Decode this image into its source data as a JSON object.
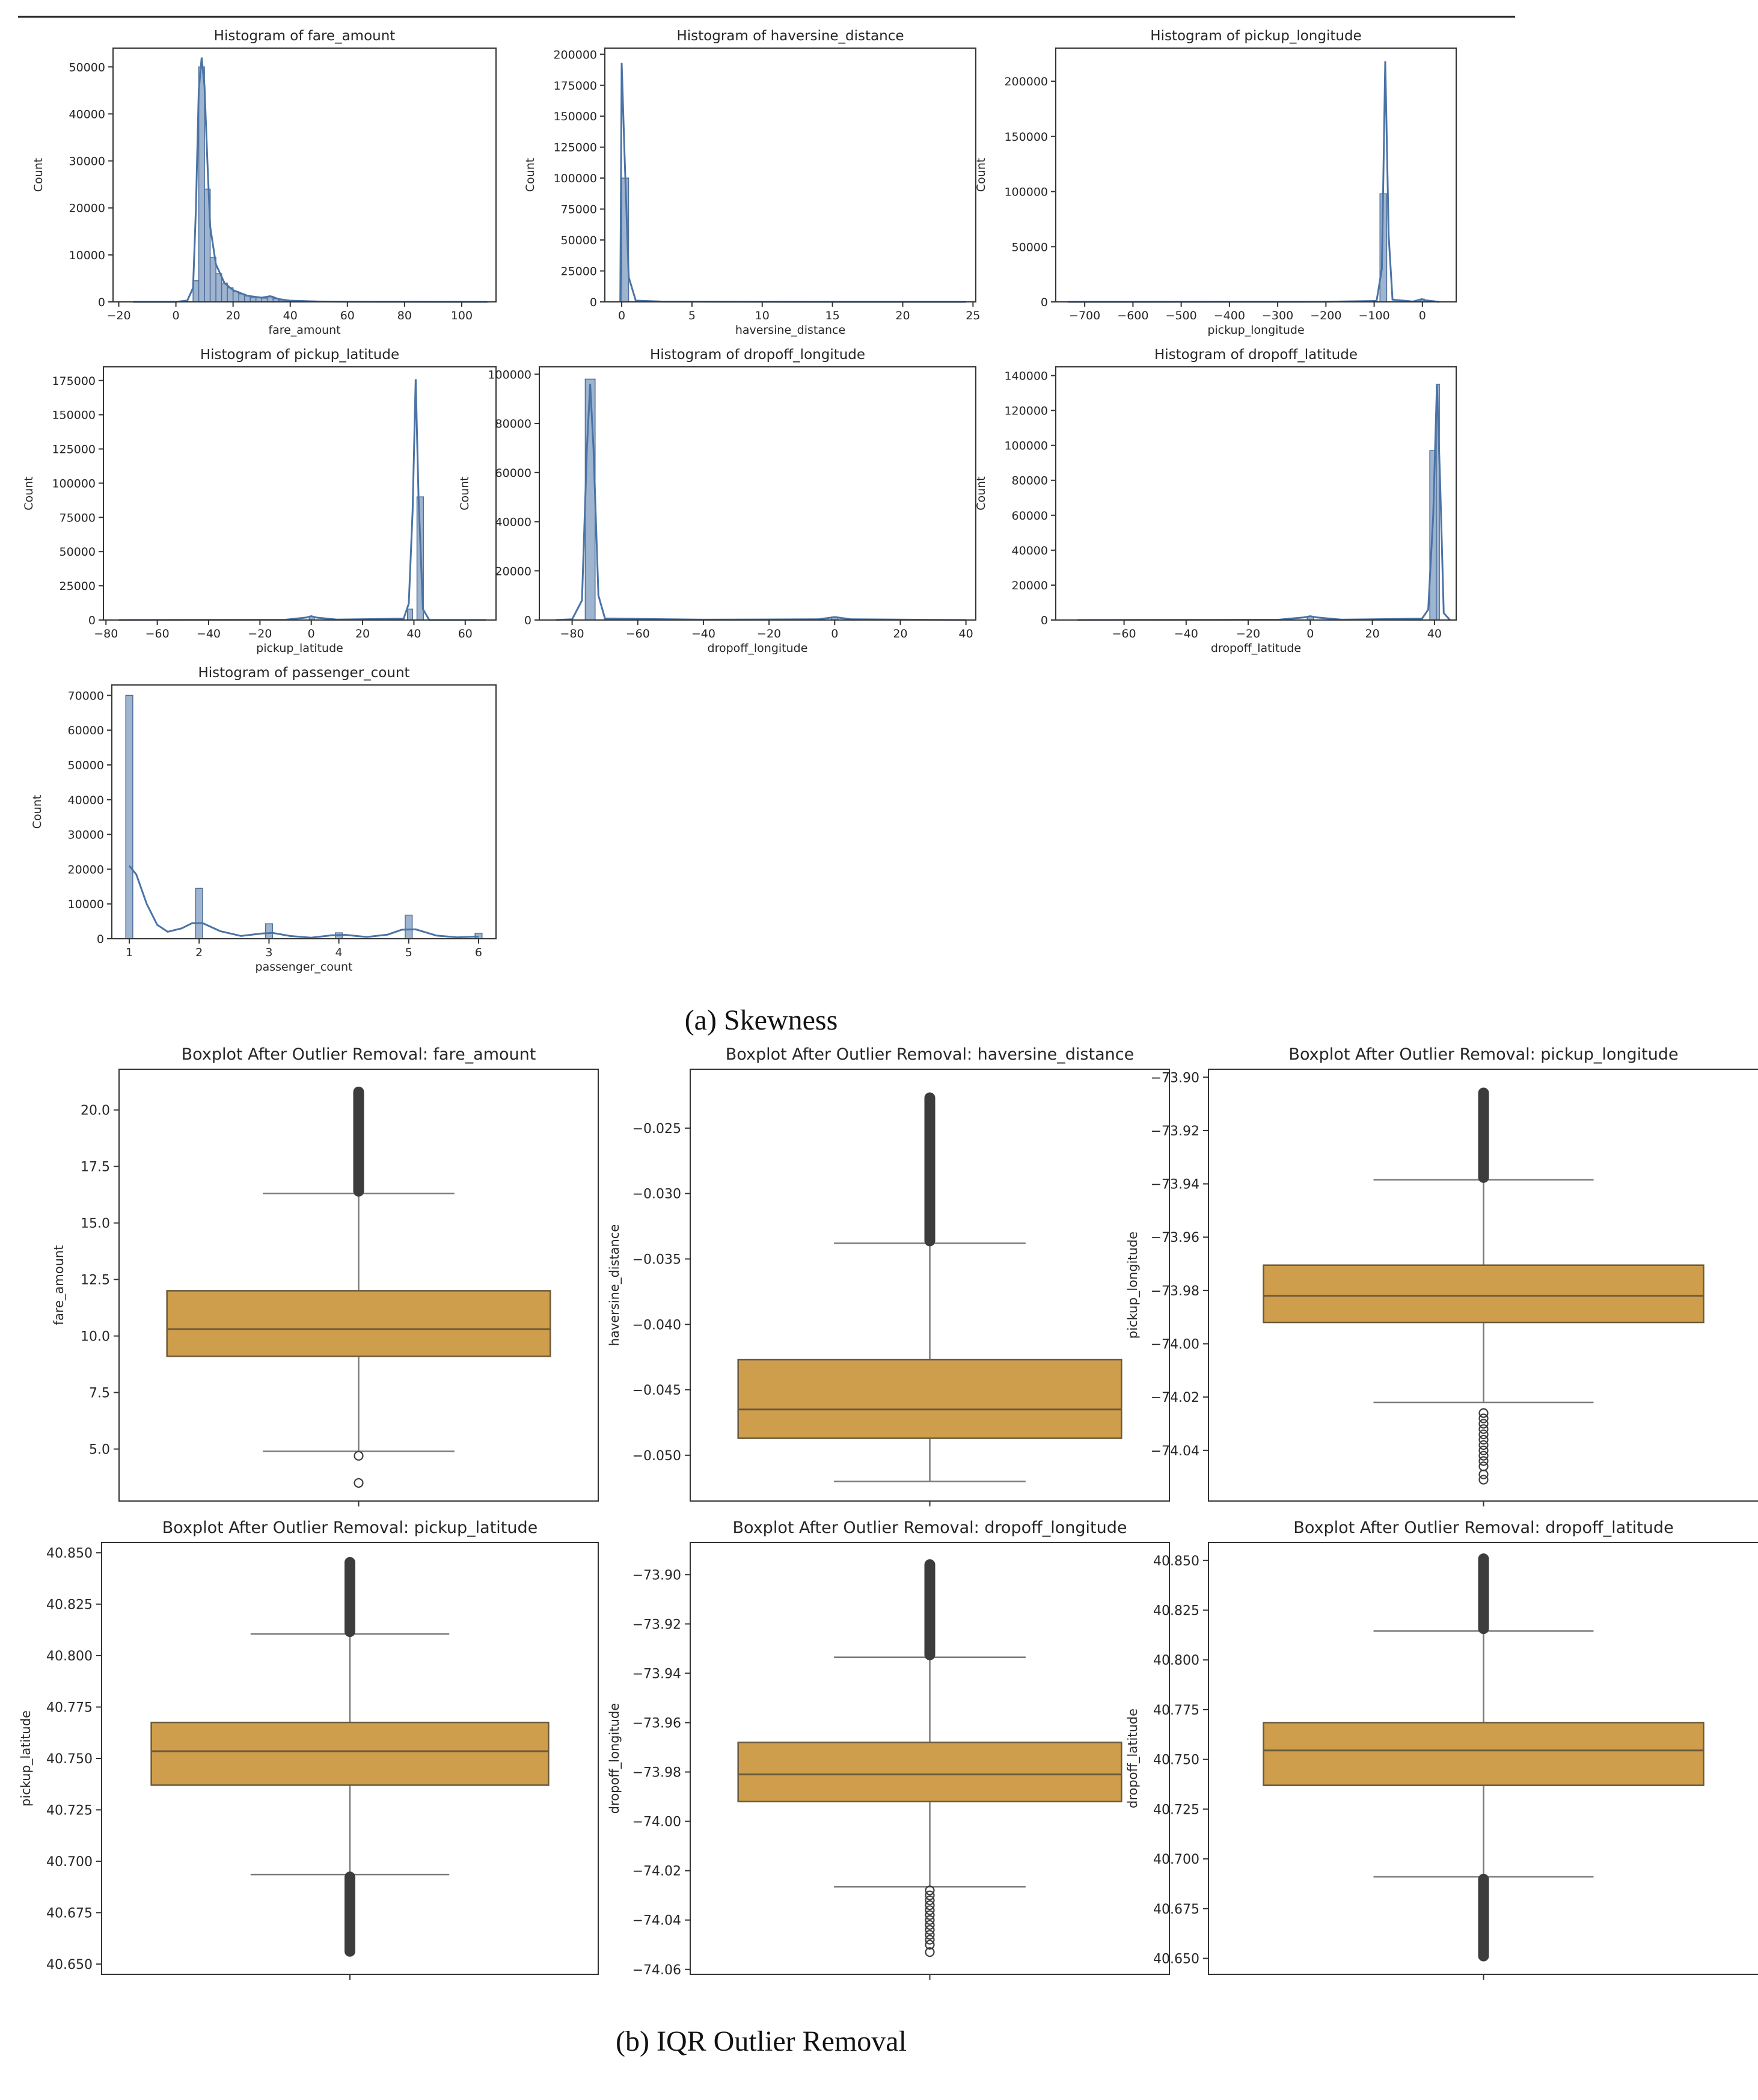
{
  "captions": {
    "a": "(a) Skewness",
    "b": "(b) IQR Outlier Removal"
  },
  "colors": {
    "hist_fill": "#9fb4cf",
    "hist_stroke": "#4e6e9a",
    "kde_line": "#4a74a6",
    "box_fill": "#cf9e4d",
    "box_stroke": "#6b5a3a",
    "outlier": "#3c3c3c"
  },
  "chart_data": [
    {
      "type": "bar",
      "title": "Histogram of fare_amount",
      "xlabel": "fare_amount",
      "ylabel": "Count",
      "xlim": [
        -22,
        112
      ],
      "ylim": [
        0,
        54000
      ],
      "xticks": [
        -20,
        0,
        20,
        40,
        60,
        80,
        100
      ],
      "xtick_labels": [
        "−20",
        "0",
        "20",
        "40",
        "60",
        "80",
        "100"
      ],
      "yticks": [
        0,
        10000,
        20000,
        30000,
        40000,
        50000
      ],
      "ytick_labels": [
        "0",
        "10000",
        "20000",
        "30000",
        "40000",
        "50000"
      ],
      "bars": [
        [
          6,
          8,
          4500
        ],
        [
          8,
          10,
          50000
        ],
        [
          10,
          12,
          24000
        ],
        [
          12,
          14,
          9500
        ],
        [
          14,
          16,
          6000
        ],
        [
          16,
          18,
          4000
        ],
        [
          18,
          20,
          3000
        ],
        [
          20,
          22,
          2200
        ],
        [
          22,
          24,
          1700
        ],
        [
          24,
          26,
          1300
        ],
        [
          26,
          28,
          1000
        ],
        [
          28,
          30,
          900
        ],
        [
          30,
          32,
          800
        ],
        [
          32,
          34,
          1200
        ],
        [
          34,
          36,
          700
        ],
        [
          36,
          38,
          400
        ],
        [
          38,
          40,
          300
        ],
        [
          40,
          42,
          200
        ],
        [
          42,
          46,
          120
        ]
      ],
      "kde": [
        [
          -15,
          0
        ],
        [
          0,
          0
        ],
        [
          4,
          300
        ],
        [
          6,
          3000
        ],
        [
          7,
          20000
        ],
        [
          8,
          45000
        ],
        [
          9,
          52000
        ],
        [
          10,
          46000
        ],
        [
          11,
          30000
        ],
        [
          12,
          16000
        ],
        [
          14,
          8000
        ],
        [
          17,
          4000
        ],
        [
          20,
          2500
        ],
        [
          25,
          1300
        ],
        [
          30,
          900
        ],
        [
          33,
          1200
        ],
        [
          36,
          600
        ],
        [
          40,
          250
        ],
        [
          50,
          80
        ],
        [
          60,
          30
        ],
        [
          80,
          10
        ],
        [
          109,
          0
        ]
      ]
    },
    {
      "type": "bar",
      "title": "Histogram of haversine_distance",
      "xlabel": "haversine_distance",
      "ylabel": "Count",
      "xlim": [
        -1.2,
        25.2
      ],
      "ylim": [
        0,
        205000
      ],
      "xticks": [
        0,
        5,
        10,
        15,
        20,
        25
      ],
      "xtick_labels": [
        "0",
        "5",
        "10",
        "15",
        "20",
        "25"
      ],
      "yticks": [
        0,
        25000,
        50000,
        75000,
        100000,
        125000,
        150000,
        175000,
        200000
      ],
      "ytick_labels": [
        "0",
        "25000",
        "50000",
        "75000",
        "100000",
        "125000",
        "150000",
        "175000",
        "200000"
      ],
      "bars": [
        [
          0,
          0.49,
          100000
        ],
        [
          0.49,
          0.98,
          300
        ]
      ],
      "kde": [
        [
          -0.1,
          0
        ],
        [
          0,
          193000
        ],
        [
          0.2,
          120000
        ],
        [
          0.5,
          20000
        ],
        [
          1,
          1000
        ],
        [
          3,
          200
        ],
        [
          10,
          60
        ],
        [
          24.5,
          0
        ]
      ]
    },
    {
      "type": "bar",
      "title": "Histogram of pickup_longitude",
      "xlabel": "pickup_longitude",
      "ylabel": "Count",
      "xlim": [
        -760,
        70
      ],
      "ylim": [
        0,
        230000
      ],
      "xticks": [
        -700,
        -600,
        -500,
        -400,
        -300,
        -200,
        -100,
        0
      ],
      "xtick_labels": [
        "−700",
        "−600",
        "−500",
        "−400",
        "−300",
        "−200",
        "−100",
        "0"
      ],
      "yticks": [
        0,
        50000,
        100000,
        150000,
        200000
      ],
      "ytick_labels": [
        "0",
        "50000",
        "100000",
        "150000",
        "200000"
      ],
      "bars": [
        [
          -88,
          -74,
          98000
        ],
        [
          -4,
          4,
          2500
        ]
      ],
      "kde": [
        [
          -735,
          0
        ],
        [
          -200,
          100
        ],
        [
          -95,
          800
        ],
        [
          -84,
          30000
        ],
        [
          -77,
          218000
        ],
        [
          -70,
          60000
        ],
        [
          -62,
          2000
        ],
        [
          -20,
          300
        ],
        [
          -1,
          2500
        ],
        [
          5,
          1500
        ],
        [
          35,
          0
        ]
      ]
    },
    {
      "type": "bar",
      "title": "Histogram of pickup_latitude",
      "xlabel": "pickup_latitude",
      "ylabel": "Count",
      "xlim": [
        -81,
        72
      ],
      "ylim": [
        0,
        185000
      ],
      "xticks": [
        -80,
        -60,
        -40,
        -20,
        0,
        20,
        40,
        60
      ],
      "xtick_labels": [
        "−80",
        "−60",
        "−40",
        "−20",
        "0",
        "20",
        "40",
        "60"
      ],
      "yticks": [
        0,
        25000,
        50000,
        75000,
        100000,
        125000,
        150000,
        175000
      ],
      "ytick_labels": [
        "0",
        "25000",
        "50000",
        "75000",
        "100000",
        "125000",
        "150000",
        "175000"
      ],
      "bars": [
        [
          37.5,
          39.5,
          8000
        ],
        [
          41.2,
          43.7,
          90000
        ],
        [
          -0.8,
          1.2,
          2500
        ]
      ],
      "kde": [
        [
          -75,
          0
        ],
        [
          -10,
          200
        ],
        [
          -2,
          1800
        ],
        [
          0,
          2800
        ],
        [
          2,
          1800
        ],
        [
          10,
          300
        ],
        [
          36,
          1000
        ],
        [
          38,
          12000
        ],
        [
          39.5,
          80000
        ],
        [
          40.7,
          176000
        ],
        [
          41.8,
          90000
        ],
        [
          43.5,
          8000
        ],
        [
          46,
          0
        ],
        [
          68,
          0
        ]
      ]
    },
    {
      "type": "bar",
      "title": "Histogram of dropoff_longitude",
      "xlabel": "dropoff_longitude",
      "ylabel": "Count",
      "xlim": [
        -90,
        43
      ],
      "ylim": [
        0,
        103000
      ],
      "xticks": [
        -80,
        -60,
        -40,
        -20,
        0,
        20,
        40
      ],
      "xtick_labels": [
        "−80",
        "−60",
        "−40",
        "−20",
        "0",
        "20",
        "40"
      ],
      "yticks": [
        0,
        20000,
        40000,
        60000,
        80000,
        100000
      ],
      "ytick_labels": [
        "0",
        "20000",
        "40000",
        "60000",
        "80000",
        "100000"
      ],
      "bars": [
        [
          -76,
          -73,
          98000
        ],
        [
          -1,
          1,
          1200
        ]
      ],
      "kde": [
        [
          -85,
          0
        ],
        [
          -80,
          300
        ],
        [
          -77,
          8000
        ],
        [
          -75.5,
          70000
        ],
        [
          -74.5,
          96000
        ],
        [
          -73.5,
          70000
        ],
        [
          -72,
          10000
        ],
        [
          -70,
          600
        ],
        [
          -40,
          150
        ],
        [
          -5,
          300
        ],
        [
          0,
          1200
        ],
        [
          5,
          300
        ],
        [
          40,
          0
        ]
      ]
    },
    {
      "type": "bar",
      "title": "Histogram of dropoff_latitude",
      "xlabel": "dropoff_latitude",
      "ylabel": "Count",
      "xlim": [
        -82,
        47
      ],
      "ylim": [
        0,
        145000
      ],
      "xticks": [
        -60,
        -40,
        -20,
        0,
        20,
        40
      ],
      "xtick_labels": [
        "−60",
        "−40",
        "−20",
        "0",
        "20",
        "40"
      ],
      "yticks": [
        0,
        20000,
        40000,
        60000,
        80000,
        100000,
        120000,
        140000
      ],
      "ytick_labels": [
        "0",
        "20000",
        "40000",
        "60000",
        "80000",
        "100000",
        "120000",
        "140000"
      ],
      "bars": [
        [
          38.5,
          40.6,
          97000
        ],
        [
          40.6,
          41.6,
          135000
        ],
        [
          -1,
          1,
          2000
        ]
      ],
      "kde": [
        [
          -75,
          0
        ],
        [
          -10,
          200
        ],
        [
          -2,
          1500
        ],
        [
          0,
          2200
        ],
        [
          2,
          1500
        ],
        [
          10,
          200
        ],
        [
          36,
          800
        ],
        [
          38,
          6000
        ],
        [
          39.6,
          60000
        ],
        [
          40.8,
          135000
        ],
        [
          41.8,
          80000
        ],
        [
          43,
          4000
        ],
        [
          45,
          0
        ]
      ]
    },
    {
      "type": "bar",
      "title": "Histogram of passenger_count",
      "xlabel": "passenger_count",
      "ylabel": "Count",
      "xlim": [
        0.75,
        6.25
      ],
      "ylim": [
        0,
        73000
      ],
      "xticks": [
        1,
        2,
        3,
        4,
        5,
        6
      ],
      "xtick_labels": [
        "1",
        "2",
        "3",
        "4",
        "5",
        "6"
      ],
      "yticks": [
        0,
        10000,
        20000,
        30000,
        40000,
        50000,
        60000,
        70000
      ],
      "ytick_labels": [
        "0",
        "10000",
        "20000",
        "30000",
        "40000",
        "50000",
        "60000",
        "70000"
      ],
      "bars": [
        [
          0.95,
          1.05,
          70000
        ],
        [
          1.95,
          2.05,
          14500
        ],
        [
          2.95,
          3.05,
          4300
        ],
        [
          3.95,
          4.05,
          1700
        ],
        [
          4.95,
          5.05,
          6800
        ],
        [
          5.95,
          6.05,
          1600
        ]
      ],
      "kde": [
        [
          1,
          21000
        ],
        [
          1.1,
          18500
        ],
        [
          1.25,
          10000
        ],
        [
          1.4,
          4000
        ],
        [
          1.55,
          2000
        ],
        [
          1.75,
          3000
        ],
        [
          1.9,
          4500
        ],
        [
          2.05,
          4500
        ],
        [
          2.3,
          2200
        ],
        [
          2.6,
          800
        ],
        [
          2.9,
          1500
        ],
        [
          3.05,
          1700
        ],
        [
          3.3,
          800
        ],
        [
          3.6,
          300
        ],
        [
          3.9,
          1000
        ],
        [
          4.1,
          1100
        ],
        [
          4.4,
          500
        ],
        [
          4.7,
          1200
        ],
        [
          4.9,
          2600
        ],
        [
          5.1,
          2700
        ],
        [
          5.4,
          900
        ],
        [
          5.7,
          400
        ],
        [
          5.95,
          600
        ],
        [
          6,
          600
        ]
      ]
    },
    {
      "type": "box",
      "title": "Boxplot After Outlier Removal: fare_amount",
      "ylabel": "fare_amount",
      "ylim": [
        2.7,
        21.8
      ],
      "yticks": [
        5,
        7.5,
        10,
        12.5,
        15,
        17.5,
        20
      ],
      "ytick_labels": [
        "5.0",
        "7.5",
        "10.0",
        "12.5",
        "15.0",
        "17.5",
        "20.0"
      ],
      "whisker_low": 4.9,
      "q1": 9.1,
      "median": 10.3,
      "q3": 12.0,
      "whisker_high": 16.3,
      "outliers_high_dense": [
        16.3,
        20.9
      ],
      "outliers_low_dense": null,
      "outliers_low": [
        4.7,
        3.5
      ]
    },
    {
      "type": "box",
      "title": "Boxplot After Outlier Removal: haversine_distance",
      "ylabel": "haversine_distance",
      "ylim": [
        -0.0535,
        -0.0205
      ],
      "yticks": [
        -0.05,
        -0.045,
        -0.04,
        -0.035,
        -0.03,
        -0.025
      ],
      "ytick_labels": [
        "−0.050",
        "−0.045",
        "−0.040",
        "−0.035",
        "−0.030",
        "−0.025"
      ],
      "whisker_low": -0.052,
      "q1": -0.0487,
      "median": -0.0465,
      "q3": -0.0427,
      "whisker_high": -0.0338,
      "outliers_high_dense": [
        -0.0338,
        -0.0225
      ],
      "outliers_low_dense": null,
      "outliers_low": []
    },
    {
      "type": "box",
      "title": "Boxplot After Outlier Removal: pickup_longitude",
      "ylabel": "pickup_longitude",
      "ylim": [
        -74.059,
        -73.897
      ],
      "yticks": [
        -74.04,
        -74.02,
        -74.0,
        -73.98,
        -73.96,
        -73.94,
        -73.92,
        -73.9
      ],
      "ytick_labels": [
        "−74.04",
        "−74.02",
        "−74.00",
        "−73.98",
        "−73.96",
        "−73.94",
        "−73.92",
        "−73.90"
      ],
      "whisker_low": -74.022,
      "q1": -73.992,
      "median": -73.982,
      "q3": -73.9705,
      "whisker_high": -73.9385,
      "outliers_high_dense": [
        -73.9385,
        -73.905
      ],
      "outliers_low_dense": null,
      "outliers_low": [
        -74.026,
        -74.028,
        -74.03,
        -74.032,
        -74.034,
        -74.036,
        -74.038,
        -74.04,
        -74.042,
        -74.044,
        -74.046,
        -74.049,
        -74.051
      ]
    },
    {
      "type": "box",
      "title": "Boxplot After Outlier Removal: pickup_latitude",
      "ylabel": "pickup_latitude",
      "ylim": [
        40.645,
        40.855
      ],
      "yticks": [
        40.65,
        40.675,
        40.7,
        40.725,
        40.75,
        40.775,
        40.8,
        40.825,
        40.85
      ],
      "ytick_labels": [
        "40.650",
        "40.675",
        "40.700",
        "40.725",
        "40.750",
        "40.775",
        "40.800",
        "40.825",
        "40.850"
      ],
      "whisker_low": 40.6935,
      "q1": 40.737,
      "median": 40.7535,
      "q3": 40.7675,
      "whisker_high": 40.8105,
      "outliers_high_dense": [
        40.8105,
        40.8465
      ],
      "outliers_low_dense": [
        40.655,
        40.6935
      ],
      "outliers_low": []
    },
    {
      "type": "box",
      "title": "Boxplot After Outlier Removal: dropoff_longitude",
      "ylabel": "dropoff_longitude",
      "ylim": [
        -74.062,
        -73.887
      ],
      "yticks": [
        -74.06,
        -74.04,
        -74.02,
        -74.0,
        -73.98,
        -73.96,
        -73.94,
        -73.92,
        -73.9
      ],
      "ytick_labels": [
        "−74.06",
        "−74.04",
        "−74.02",
        "−74.00",
        "−73.98",
        "−73.96",
        "−73.94",
        "−73.92",
        "−73.90"
      ],
      "whisker_low": -74.0265,
      "q1": -73.992,
      "median": -73.981,
      "q3": -73.968,
      "whisker_high": -73.9335,
      "outliers_high_dense": [
        -73.9335,
        -73.895
      ],
      "outliers_low_dense": null,
      "outliers_low": [
        -74.028,
        -74.03,
        -74.032,
        -74.034,
        -74.036,
        -74.038,
        -74.04,
        -74.042,
        -74.044,
        -74.046,
        -74.048,
        -74.05,
        -74.053
      ]
    },
    {
      "type": "box",
      "title": "Boxplot After Outlier Removal: dropoff_latitude",
      "ylabel": "dropoff_latitude",
      "ylim": [
        40.642,
        40.859
      ],
      "yticks": [
        40.65,
        40.675,
        40.7,
        40.725,
        40.75,
        40.775,
        40.8,
        40.825,
        40.85
      ],
      "ytick_labels": [
        "40.650",
        "40.675",
        "40.700",
        "40.725",
        "40.750",
        "40.775",
        "40.800",
        "40.825",
        "40.850"
      ],
      "whisker_low": 40.691,
      "q1": 40.737,
      "median": 40.7545,
      "q3": 40.7685,
      "whisker_high": 40.8145,
      "outliers_high_dense": [
        40.8145,
        40.852
      ],
      "outliers_low_dense": [
        40.65,
        40.691
      ],
      "outliers_low": []
    }
  ]
}
